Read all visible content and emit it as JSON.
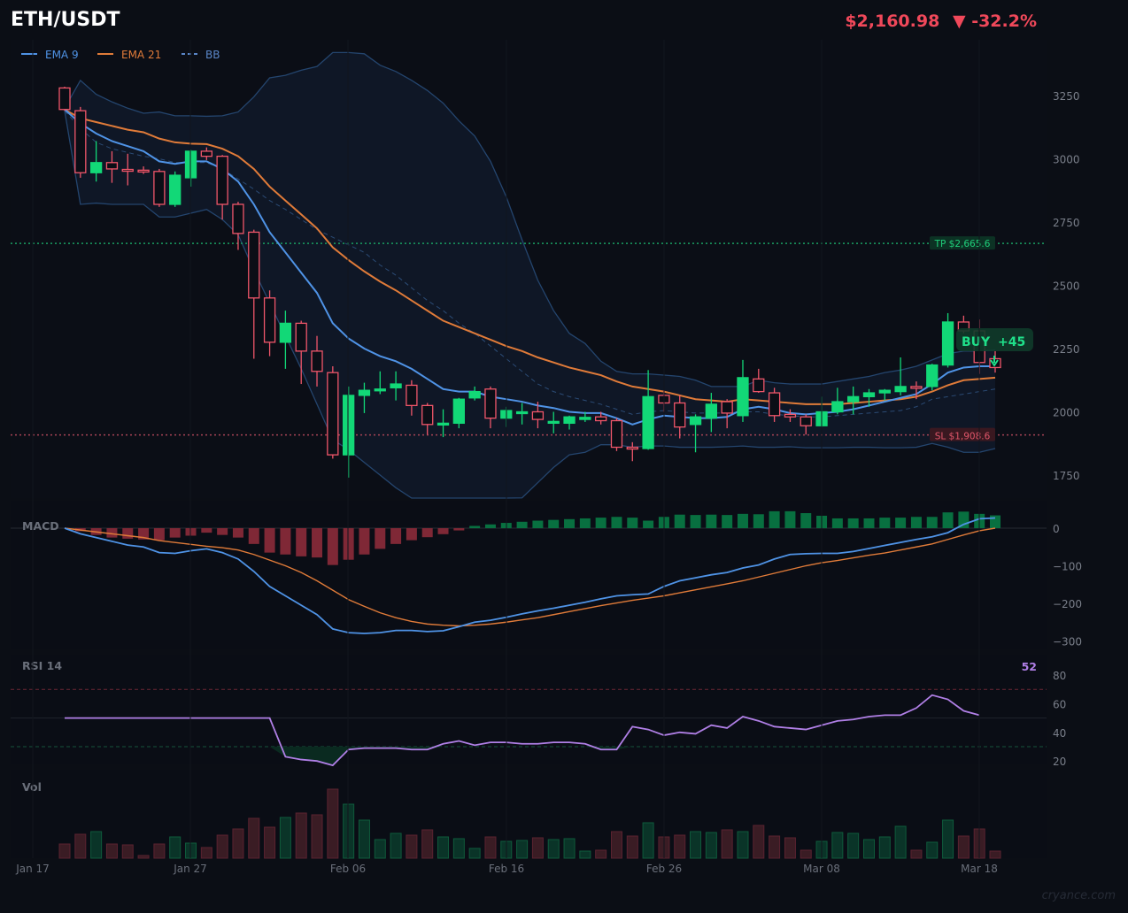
{
  "header": {
    "symbol": "ETH/USDT",
    "price": "$2,160.98",
    "change_arrow": "▼",
    "change_pct": "-32.2%",
    "change_color": "#f0485a"
  },
  "legend": [
    {
      "label": "EMA 9",
      "color": "#4f93e6",
      "style": "solid"
    },
    {
      "label": "EMA 21",
      "color": "#e07b39",
      "style": "solid"
    },
    {
      "label": "BB",
      "color": "#5a86c8",
      "style": "dashed"
    }
  ],
  "levels": {
    "tp": {
      "label": "TP $2,665.6",
      "value": 2665.6,
      "color": "#1fcf7a"
    },
    "sl": {
      "label": "SL $1,908.6",
      "value": 1908.6,
      "color": "#e0566a"
    }
  },
  "signal": {
    "label": "BUY",
    "score": "+45",
    "color": "#1fe08a"
  },
  "panels": {
    "macd": {
      "label": "MACD"
    },
    "rsi": {
      "label": "RSI 14",
      "current": "52"
    },
    "volume": {
      "label": "Vol"
    }
  },
  "watermark": "cryance.com",
  "colors": {
    "bg": "#0b0e15",
    "up": "#12d877",
    "down": "#f0566a",
    "bb_band": "#24456e",
    "bb_fill": "#0f1726",
    "macd_line": "#4f93e6",
    "signal_line": "#e07b39",
    "rsi_line": "#b07fe6",
    "hist_up": "#087040",
    "hist_down": "#7f2836",
    "vol_up": "#0a3428",
    "vol_down": "#3a1c24",
    "axis_text": "#7a7f8a"
  },
  "chart_data": [
    {
      "type": "candlestick",
      "title": "ETH/USDT",
      "x_ticks": [
        "Jan 17",
        "Jan 27",
        "Feb 06",
        "Feb 16",
        "Feb 26",
        "Mar 08",
        "Mar 18"
      ],
      "y_ticks": [
        1750,
        2000,
        2250,
        2500,
        2750,
        3000,
        3250
      ],
      "ylim": [
        1660,
        3480
      ],
      "start_date": "Jan 19",
      "candles": [
        [
          3280,
          3285,
          3190,
          3195
        ],
        [
          3190,
          3205,
          2925,
          2945
        ],
        [
          2945,
          3070,
          2910,
          2985
        ],
        [
          2985,
          3030,
          2905,
          2960
        ],
        [
          2958,
          3020,
          2895,
          2955
        ],
        [
          2955,
          2970,
          2940,
          2953
        ],
        [
          2950,
          2960,
          2810,
          2820
        ],
        [
          2820,
          2950,
          2810,
          2935
        ],
        [
          2925,
          3035,
          2890,
          3030
        ],
        [
          3030,
          3045,
          2995,
          3010
        ],
        [
          3010,
          3015,
          2760,
          2820
        ],
        [
          2820,
          2830,
          2640,
          2705
        ],
        [
          2710,
          2720,
          2210,
          2450
        ],
        [
          2450,
          2480,
          2220,
          2275
        ],
        [
          2275,
          2400,
          2170,
          2350
        ],
        [
          2350,
          2360,
          2110,
          2240
        ],
        [
          2240,
          2300,
          2100,
          2160
        ],
        [
          2155,
          2180,
          1815,
          1830
        ],
        [
          1830,
          2100,
          1740,
          2065
        ],
        [
          2065,
          2115,
          1995,
          2085
        ],
        [
          2085,
          2160,
          2070,
          2090
        ],
        [
          2095,
          2160,
          2045,
          2110
        ],
        [
          2105,
          2125,
          1985,
          2025
        ],
        [
          2025,
          2035,
          1910,
          1950
        ],
        [
          1955,
          2010,
          1900,
          1955
        ],
        [
          1955,
          2055,
          1935,
          2050
        ],
        [
          2055,
          2100,
          2045,
          2080
        ],
        [
          2090,
          2100,
          1935,
          1975
        ],
        [
          1975,
          2020,
          1940,
          2005
        ],
        [
          1995,
          2035,
          1950,
          2000
        ],
        [
          2000,
          2040,
          1935,
          1970
        ],
        [
          1955,
          2000,
          1915,
          1962
        ],
        [
          1955,
          1985,
          1930,
          1980
        ],
        [
          1970,
          2000,
          1960,
          1978
        ],
        [
          1980,
          2000,
          1950,
          1965
        ],
        [
          1965,
          1975,
          1845,
          1860
        ],
        [
          1860,
          1880,
          1805,
          1855
        ],
        [
          1855,
          2165,
          1850,
          2060
        ],
        [
          2065,
          2085,
          2000,
          2035
        ],
        [
          2035,
          2065,
          1895,
          1940
        ],
        [
          1950,
          1990,
          1840,
          1980
        ],
        [
          1975,
          2075,
          1920,
          2030
        ],
        [
          2040,
          2050,
          1935,
          1995
        ],
        [
          1985,
          2205,
          1960,
          2135
        ],
        [
          2130,
          2170,
          2075,
          2080
        ],
        [
          2075,
          2095,
          1960,
          1985
        ],
        [
          1990,
          2010,
          1960,
          1980
        ],
        [
          1980,
          1990,
          1910,
          1945
        ],
        [
          1945,
          2060,
          1940,
          2000
        ],
        [
          2000,
          2095,
          1990,
          2040
        ],
        [
          2040,
          2100,
          1990,
          2060
        ],
        [
          2060,
          2090,
          2020,
          2075
        ],
        [
          2075,
          2090,
          2045,
          2085
        ],
        [
          2080,
          2215,
          2065,
          2100
        ],
        [
          2100,
          2120,
          2050,
          2098
        ],
        [
          2100,
          2190,
          2085,
          2185
        ],
        [
          2185,
          2390,
          2175,
          2355
        ],
        [
          2355,
          2380,
          2310,
          2320
        ],
        [
          2320,
          2365,
          2150,
          2195
        ],
        [
          2210,
          2240,
          2155,
          2175
        ]
      ],
      "ema9": [
        3195,
        3140,
        3100,
        3070,
        3050,
        3030,
        2990,
        2980,
        2990,
        2990,
        2960,
        2910,
        2820,
        2710,
        2630,
        2550,
        2470,
        2350,
        2290,
        2250,
        2220,
        2200,
        2170,
        2130,
        2090,
        2080,
        2080,
        2060,
        2050,
        2040,
        2025,
        2015,
        2000,
        1995,
        1995,
        1975,
        1950,
        1970,
        1985,
        1980,
        1975,
        1975,
        1980,
        2010,
        2020,
        2010,
        1995,
        1990,
        1995,
        2000,
        2010,
        2025,
        2040,
        2055,
        2070,
        2110,
        2155,
        2175,
        2180,
        2180
      ],
      "ema21": [
        3195,
        3160,
        3145,
        3130,
        3115,
        3105,
        3080,
        3065,
        3060,
        3058,
        3040,
        3010,
        2960,
        2890,
        2835,
        2780,
        2725,
        2650,
        2600,
        2555,
        2515,
        2480,
        2440,
        2400,
        2360,
        2335,
        2310,
        2285,
        2260,
        2240,
        2215,
        2195,
        2175,
        2160,
        2145,
        2120,
        2100,
        2090,
        2080,
        2065,
        2050,
        2045,
        2040,
        2050,
        2045,
        2040,
        2035,
        2030,
        2030,
        2030,
        2035,
        2040,
        2045,
        2050,
        2060,
        2080,
        2105,
        2125,
        2130,
        2135
      ],
      "bb_upper": [
        3200,
        3310,
        3255,
        3225,
        3200,
        3180,
        3185,
        3170,
        3170,
        3168,
        3170,
        3185,
        3245,
        3320,
        3330,
        3350,
        3365,
        3420,
        3420,
        3415,
        3370,
        3345,
        3310,
        3270,
        3220,
        3150,
        3090,
        2990,
        2850,
        2680,
        2520,
        2400,
        2310,
        2270,
        2200,
        2160,
        2150,
        2150,
        2145,
        2140,
        2125,
        2100,
        2100,
        2100,
        2125,
        2115,
        2110,
        2110,
        2110,
        2120,
        2130,
        2140,
        2155,
        2165,
        2180,
        2205,
        2230,
        2240,
        2240,
        2245
      ],
      "bb_mid": [
        3190,
        3120,
        3065,
        3040,
        3025,
        3010,
        3000,
        2985,
        2985,
        2985,
        2960,
        2920,
        2880,
        2835,
        2800,
        2760,
        2720,
        2690,
        2660,
        2630,
        2580,
        2540,
        2490,
        2440,
        2400,
        2350,
        2310,
        2260,
        2210,
        2160,
        2110,
        2080,
        2060,
        2045,
        2030,
        2010,
        1990,
        2000,
        2005,
        2000,
        1995,
        1995,
        1995,
        2000,
        2000,
        1990,
        1985,
        1980,
        1980,
        1985,
        1990,
        1995,
        2000,
        2005,
        2020,
        2050,
        2060,
        2070,
        2080,
        2090
      ],
      "bb_lower": [
        3190,
        2820,
        2825,
        2820,
        2820,
        2820,
        2770,
        2770,
        2785,
        2800,
        2760,
        2700,
        2560,
        2430,
        2300,
        2170,
        2030,
        1890,
        1850,
        1800,
        1750,
        1700,
        1650,
        1600,
        1560,
        1530,
        1520,
        1560,
        1600,
        1660,
        1720,
        1780,
        1830,
        1840,
        1870,
        1870,
        1860,
        1865,
        1865,
        1860,
        1860,
        1860,
        1862,
        1865,
        1860,
        1860,
        1862,
        1858,
        1858,
        1858,
        1860,
        1860,
        1858,
        1858,
        1860,
        1875,
        1860,
        1840,
        1840,
        1855
      ]
    },
    {
      "type": "bar+line",
      "title": "MACD",
      "y_ticks": [
        0,
        -100,
        -200,
        -300
      ],
      "macd": [
        0,
        -15,
        -25,
        -35,
        -45,
        -50,
        -65,
        -67,
        -60,
        -55,
        -65,
        -82,
        -115,
        -155,
        -180,
        -205,
        -230,
        -268,
        -278,
        -280,
        -278,
        -272,
        -272,
        -275,
        -273,
        -262,
        -250,
        -245,
        -237,
        -228,
        -220,
        -213,
        -205,
        -197,
        -188,
        -180,
        -177,
        -175,
        -155,
        -140,
        -132,
        -124,
        -118,
        -106,
        -98,
        -82,
        -70,
        -68,
        -67,
        -67,
        -62,
        -54,
        -46,
        -38,
        -30,
        -23,
        -12,
        10,
        25,
        27
      ],
      "signal": [
        0,
        -5,
        -10,
        -15,
        -20,
        -25,
        -33,
        -38,
        -43,
        -48,
        -52,
        -58,
        -70,
        -85,
        -100,
        -118,
        -140,
        -165,
        -190,
        -208,
        -225,
        -238,
        -248,
        -255,
        -258,
        -260,
        -258,
        -255,
        -250,
        -244,
        -238,
        -230,
        -222,
        -214,
        -206,
        -199,
        -192,
        -186,
        -180,
        -172,
        -164,
        -156,
        -148,
        -140,
        -130,
        -120,
        -110,
        -100,
        -92,
        -86,
        -79,
        -72,
        -66,
        -58,
        -50,
        -42,
        -30,
        -18,
        -7,
        0
      ],
      "histogram": [
        0,
        -8,
        -18,
        -25,
        -28,
        -30,
        -32,
        -25,
        -20,
        -12,
        -18,
        -25,
        -42,
        -65,
        -70,
        -75,
        -78,
        -98,
        -84,
        -70,
        -55,
        -42,
        -32,
        -24,
        -16,
        -6,
        6,
        10,
        14,
        17,
        20,
        22,
        24,
        26,
        28,
        30,
        28,
        20,
        30,
        36,
        35,
        36,
        35,
        38,
        37,
        45,
        45,
        40,
        33,
        26,
        26,
        26,
        28,
        28,
        30,
        30,
        42,
        44,
        38,
        34
      ]
    },
    {
      "type": "line",
      "title": "RSI 14",
      "y_ticks": [
        20,
        40,
        60,
        80
      ],
      "overbought": 70,
      "oversold": 30,
      "midline": 50,
      "rsi": [
        50,
        50,
        50,
        50,
        50,
        50,
        50,
        50,
        50,
        50,
        50,
        50,
        50,
        50,
        23,
        21,
        20,
        17,
        28,
        29,
        29,
        29,
        28,
        28,
        32,
        34,
        31,
        33,
        33,
        32,
        32,
        33,
        33,
        32,
        28,
        28,
        44,
        42,
        38,
        40,
        39,
        45,
        43,
        51,
        48,
        44,
        43,
        42,
        45,
        48,
        49,
        51,
        52,
        52,
        57,
        66,
        63,
        55,
        52,
        null
      ],
      "current_label": "52"
    },
    {
      "type": "bar",
      "title": "Vol",
      "volume": [
        16,
        27,
        30,
        16,
        15,
        3,
        16,
        24,
        17,
        12,
        26,
        33,
        45,
        35,
        46,
        51,
        49,
        78,
        61,
        43,
        21,
        28,
        26,
        32,
        24,
        22,
        11,
        24,
        19,
        20,
        23,
        21,
        22,
        8,
        9,
        30,
        25,
        40,
        24,
        26,
        30,
        29,
        32,
        30,
        37,
        25,
        23,
        9,
        19,
        29,
        28,
        21,
        24,
        36,
        9,
        18,
        43,
        25,
        33,
        8
      ]
    }
  ]
}
